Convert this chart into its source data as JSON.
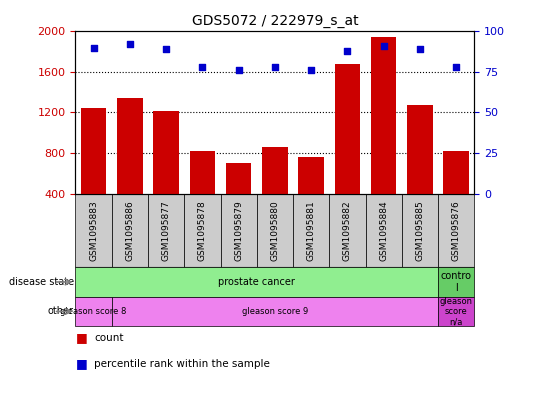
{
  "title": "GDS5072 / 222979_s_at",
  "samples": [
    "GSM1095883",
    "GSM1095886",
    "GSM1095877",
    "GSM1095878",
    "GSM1095879",
    "GSM1095880",
    "GSM1095881",
    "GSM1095882",
    "GSM1095884",
    "GSM1095885",
    "GSM1095876"
  ],
  "counts": [
    1240,
    1340,
    1210,
    820,
    700,
    860,
    760,
    1680,
    1950,
    1270,
    820
  ],
  "percentile_ranks": [
    90,
    92,
    89,
    78,
    76,
    78,
    76,
    88,
    91,
    89,
    78
  ],
  "ylim_left": [
    400,
    2000
  ],
  "ylim_right": [
    0,
    100
  ],
  "yticks_left": [
    400,
    800,
    1200,
    1600,
    2000
  ],
  "yticks_right": [
    0,
    25,
    50,
    75,
    100
  ],
  "bar_color": "#cc0000",
  "dot_color": "#0000cc",
  "disease_state_spans": [
    [
      0,
      9,
      "prostate cancer",
      "#90ee90"
    ],
    [
      10,
      10,
      "contro\nl",
      "#66cc66"
    ]
  ],
  "other_spans": [
    [
      0,
      0,
      "gleason score 8",
      "#ee82ee"
    ],
    [
      1,
      9,
      "gleason score 9",
      "#ee82ee"
    ],
    [
      10,
      10,
      "gleason\nscore\nn/a",
      "#cc44cc"
    ]
  ],
  "background_color": "#ffffff",
  "tick_color_left": "#cc0000",
  "tick_color_right": "#0000cc",
  "label_bg_color": "#cccccc",
  "dotted_yticks": [
    800,
    1200,
    1600
  ]
}
